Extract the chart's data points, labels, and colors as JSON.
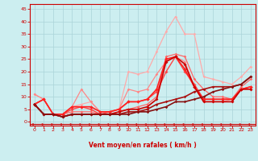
{
  "xlabel": "Vent moyen/en rafales ( km/h )",
  "bg_color": "#cceef0",
  "grid_color": "#aad4d8",
  "yticks": [
    0,
    5,
    10,
    15,
    20,
    25,
    30,
    35,
    40,
    45
  ],
  "xticks": [
    0,
    1,
    2,
    3,
    4,
    5,
    6,
    7,
    8,
    9,
    10,
    11,
    12,
    13,
    14,
    15,
    16,
    17,
    18,
    19,
    20,
    21,
    22,
    23
  ],
  "ylim": [
    -1.5,
    47
  ],
  "xlim": [
    -0.5,
    23.5
  ],
  "lines": [
    {
      "x": [
        0,
        1,
        2,
        3,
        4,
        5,
        6,
        7,
        8,
        9,
        10,
        11,
        12,
        13,
        14,
        15,
        16,
        17,
        18,
        19,
        20,
        21,
        22,
        23
      ],
      "y": [
        11,
        9,
        3,
        3,
        6,
        7,
        8,
        4,
        4,
        5,
        20,
        19,
        20,
        28,
        36,
        42,
        35,
        35,
        18,
        17,
        16,
        15,
        18,
        22
      ],
      "color": "#ffaaaa",
      "lw": 0.9,
      "marker": "D",
      "ms": 1.8
    },
    {
      "x": [
        0,
        1,
        2,
        3,
        4,
        5,
        6,
        7,
        8,
        9,
        10,
        11,
        12,
        13,
        14,
        15,
        16,
        17,
        18,
        19,
        20,
        21,
        22,
        23
      ],
      "y": [
        7,
        9,
        3,
        3,
        4,
        4,
        4,
        3,
        3,
        4,
        5,
        6,
        7,
        10,
        26,
        27,
        26,
        17,
        13,
        10,
        10,
        9,
        14,
        17
      ],
      "color": "#ff6666",
      "lw": 0.9,
      "marker": "D",
      "ms": 1.8
    },
    {
      "x": [
        0,
        1,
        2,
        3,
        4,
        5,
        6,
        7,
        8,
        9,
        10,
        11,
        12,
        13,
        14,
        15,
        16,
        17,
        18,
        19,
        20,
        21,
        22,
        23
      ],
      "y": [
        11,
        9,
        3,
        3,
        6,
        13,
        8,
        4,
        4,
        5,
        13,
        12,
        13,
        19,
        24,
        26,
        24,
        14,
        8,
        8,
        8,
        9,
        13,
        14
      ],
      "color": "#ff8888",
      "lw": 0.9,
      "marker": "D",
      "ms": 1.8
    },
    {
      "x": [
        0,
        1,
        2,
        3,
        4,
        5,
        6,
        7,
        8,
        9,
        10,
        11,
        12,
        13,
        14,
        15,
        16,
        17,
        18,
        19,
        20,
        21,
        22,
        23
      ],
      "y": [
        7,
        9,
        3,
        3,
        5,
        6,
        5,
        3,
        4,
        5,
        8,
        8,
        9,
        12,
        20,
        26,
        20,
        15,
        9,
        9,
        9,
        9,
        13,
        14
      ],
      "color": "#ff4444",
      "lw": 1.0,
      "marker": "D",
      "ms": 2.0
    },
    {
      "x": [
        0,
        1,
        2,
        3,
        4,
        5,
        6,
        7,
        8,
        9,
        10,
        11,
        12,
        13,
        14,
        15,
        16,
        17,
        18,
        19,
        20,
        21,
        22,
        23
      ],
      "y": [
        7,
        9,
        3,
        3,
        6,
        6,
        6,
        4,
        4,
        5,
        8,
        8,
        9,
        13,
        25,
        26,
        21,
        14,
        9,
        9,
        9,
        9,
        13,
        14
      ],
      "color": "#ff2222",
      "lw": 1.2,
      "marker": "D",
      "ms": 2.2
    },
    {
      "x": [
        0,
        1,
        2,
        3,
        4,
        5,
        6,
        7,
        8,
        9,
        10,
        11,
        12,
        13,
        14,
        15,
        16,
        17,
        18,
        19,
        20,
        21,
        22,
        23
      ],
      "y": [
        7,
        3,
        3,
        2,
        3,
        3,
        3,
        3,
        3,
        4,
        5,
        5,
        6,
        9,
        24,
        26,
        23,
        14,
        8,
        8,
        8,
        8,
        13,
        13
      ],
      "color": "#cc0000",
      "lw": 1.2,
      "marker": "D",
      "ms": 2.0
    },
    {
      "x": [
        0,
        1,
        2,
        3,
        4,
        5,
        6,
        7,
        8,
        9,
        10,
        11,
        12,
        13,
        14,
        15,
        16,
        17,
        18,
        19,
        20,
        21,
        22,
        23
      ],
      "y": [
        7,
        3,
        3,
        2,
        3,
        3,
        3,
        3,
        3,
        3,
        4,
        4,
        5,
        7,
        8,
        9,
        10,
        12,
        13,
        14,
        14,
        14,
        15,
        18
      ],
      "color": "#aa1111",
      "lw": 1.2,
      "marker": "D",
      "ms": 1.8
    },
    {
      "x": [
        0,
        1,
        2,
        3,
        4,
        5,
        6,
        7,
        8,
        9,
        10,
        11,
        12,
        13,
        14,
        15,
        16,
        17,
        18,
        19,
        20,
        21,
        22,
        23
      ],
      "y": [
        7,
        3,
        3,
        2,
        3,
        3,
        3,
        3,
        3,
        3,
        3,
        4,
        4,
        5,
        6,
        8,
        8,
        9,
        10,
        12,
        13,
        14,
        15,
        18
      ],
      "color": "#881111",
      "lw": 1.2,
      "marker": "D",
      "ms": 1.8
    }
  ],
  "arrow_color": "#cc0000",
  "tick_color": "#cc0000",
  "spine_color": "#cc0000"
}
